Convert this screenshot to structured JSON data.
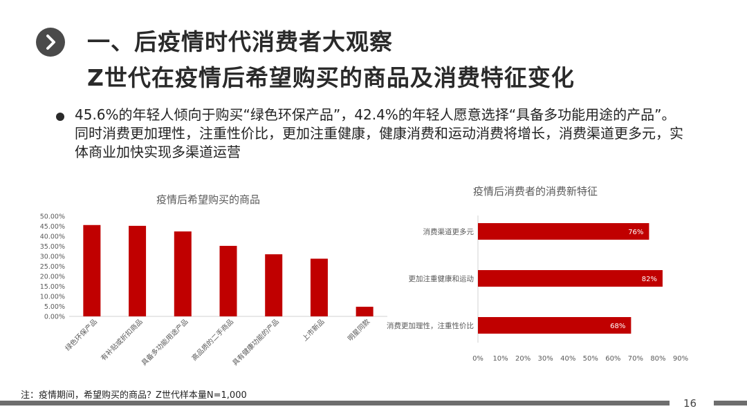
{
  "header": {
    "title_line1": "一、后疫情时代消费者大观察",
    "title_line2": "Z世代在疫情后希望购买的商品及消费特征变化",
    "nav_icon": "chevron-right-icon"
  },
  "bullet": {
    "text": "45.6%的年轻人倾向于购买“绿色环保产品”，42.4%的年轻人愿意选择“具备多功能用途的产品”。同时消费更加理性，注重性价比，更加注重健康，健康消费和运动消费将增长，消费渠道更多元，实体商业加快实现多渠道运营"
  },
  "footnote": "注：疫情期间，希望购买的商品？Z世代样本量N=1,000",
  "page_number": "16",
  "colors": {
    "bar": "#c00000",
    "axis_text": "#595959",
    "band": "#6e6e6e"
  },
  "chart_data": [
    {
      "type": "bar",
      "title": "疫情后希望购买的商品",
      "categories": [
        "绿色环保产品",
        "有补贴或折扣商品",
        "具备多功能用途产品",
        "高品质的二手商品",
        "具有健康功能的产品",
        "上市新品",
        "明星同款"
      ],
      "values": [
        45.6,
        45.2,
        42.4,
        35.2,
        31.0,
        28.8,
        4.8
      ],
      "unit": "%",
      "yticks": [
        "0.00%",
        "5.00%",
        "10.00%",
        "15.00%",
        "20.00%",
        "25.00%",
        "30.00%",
        "35.00%",
        "40.00%",
        "45.00%",
        "50.00%"
      ],
      "ylim": [
        0,
        50
      ],
      "grid": false
    },
    {
      "type": "bar",
      "orientation": "horizontal",
      "title": "疫情后消费者的消费新特征",
      "categories": [
        "消费渠道更多元",
        "更加注重健康和运动",
        "消费更加理性，注重性价比"
      ],
      "values": [
        76,
        82,
        68
      ],
      "data_labels": [
        "76%",
        "82%",
        "68%"
      ],
      "xticks": [
        "0%",
        "10%",
        "20%",
        "30%",
        "40%",
        "50%",
        "60%",
        "70%",
        "80%",
        "90%"
      ],
      "xlim": [
        0,
        90
      ],
      "grid": false
    }
  ]
}
